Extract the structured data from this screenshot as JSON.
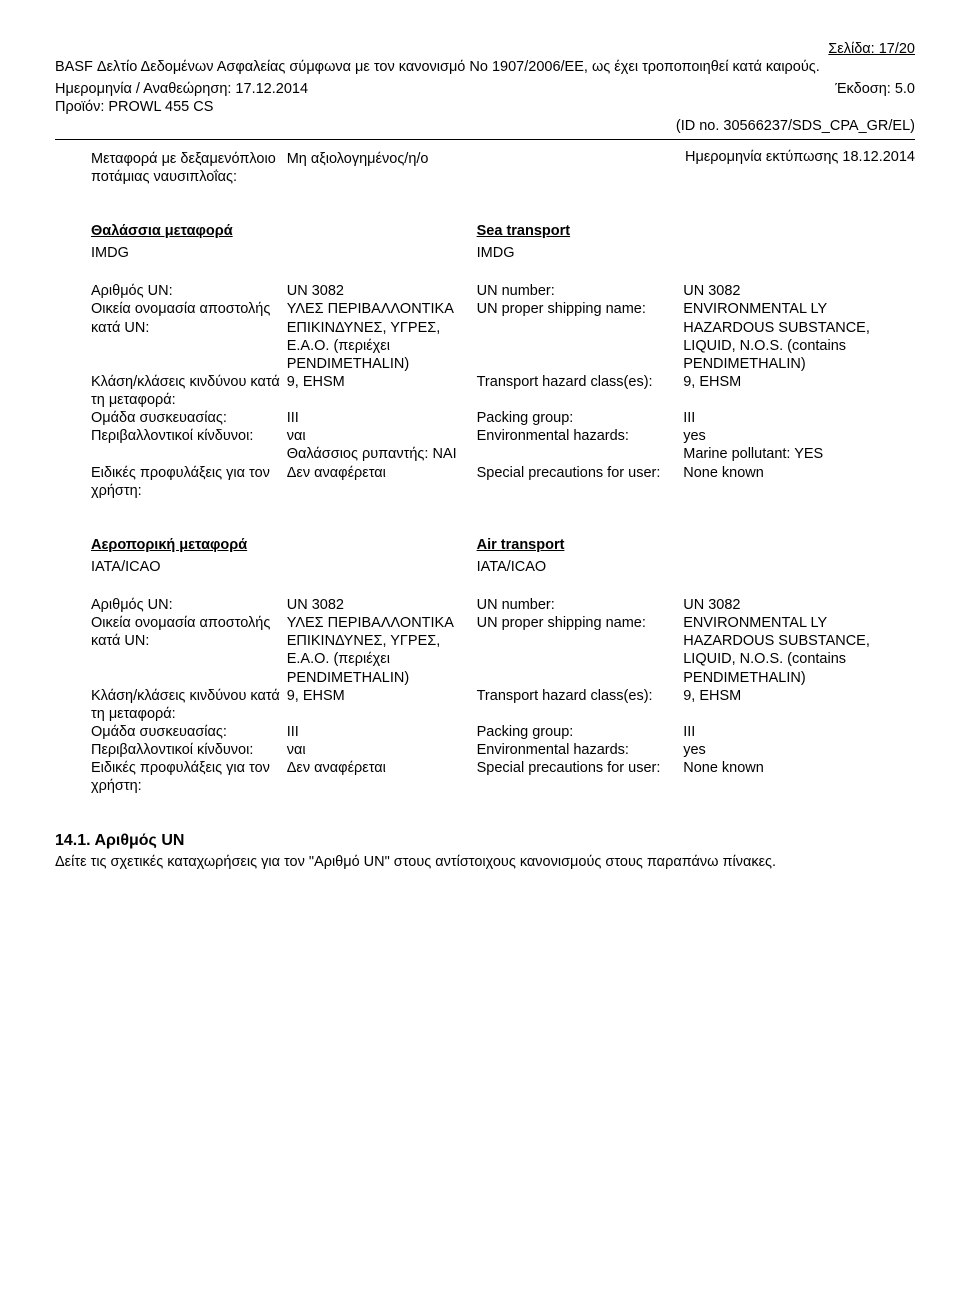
{
  "header": {
    "page_label": "Σελίδα: 17/20",
    "title_line": "BASF Δελτίο Δεδομένων Ασφαλείας σύμφωνα με τον κανονισμό Νο 1907/2006/ΕΕ, ως έχει τροποποιηθεί κατά καιρούς.",
    "date_label": "Ημερομηνία / Αναθεώρηση: 17.12.2014",
    "version_label": "Έκδοση: 5.0",
    "product_label": "Προϊόν: PROWL 455 CS",
    "id_line": "(ID no. 30566237/SDS_CPA_GR/EL)",
    "print_date": "Ημερομηνία εκτύπωσης 18.12.2014",
    "transport_tanker_label": "Μεταφορά με δεξαμενόπλοιο ποτάμιας ναυσιπλοΐας:",
    "transport_tanker_value": "Μη αξιολογημένος/η/ο"
  },
  "sea": {
    "gr_title": "Θαλάσσια μεταφορά",
    "en_title": "Sea transport",
    "gr_code": "IMDG",
    "en_code": "IMDG",
    "rows": [
      {
        "gr_l": "Αριθμός UN:",
        "gr_v": "UN 3082",
        "en_l": "UN number:",
        "en_v": "UN 3082"
      },
      {
        "gr_l": "Οικεία ονομασία αποστολής κατά UN:",
        "gr_v": "ΥΛΕΣ ΠΕΡΙΒΑΛΛΟΝΤΙΚΑ ΕΠΙΚΙΝΔΥΝΕΣ, ΥΓΡΕΣ, Ε.Α.Ο. (περιέχει PENDIMETHALIN)",
        "en_l": "UN proper shipping name:",
        "en_v": "ENVIRONMENTAL LY HAZARDOUS SUBSTANCE, LIQUID, N.O.S. (contains PENDIMETHALIN)"
      },
      {
        "gr_l": "Κλάση/κλάσεις κινδύνου κατά τη μεταφορά:",
        "gr_v": "9, EHSM",
        "en_l": "Transport hazard class(es):",
        "en_v": "9, EHSM"
      },
      {
        "gr_l": "Ομάδα συσκευασίας:",
        "gr_v": "III",
        "en_l": "Packing group:",
        "en_v": "III"
      },
      {
        "gr_l": "Περιβαλλοντικοί κίνδυνοι:",
        "gr_v": "ναι\nΘαλάσσιος ρυπαντής: ΝΑΙ",
        "en_l": "Environmental hazards:",
        "en_v": "yes\nMarine pollutant: YES"
      },
      {
        "gr_l": "Ειδικές προφυλάξεις για τον χρήστη:",
        "gr_v": "Δεν αναφέρεται",
        "en_l": "Special precautions for user:",
        "en_v": "None known"
      }
    ]
  },
  "air": {
    "gr_title": "Αεροπορική μεταφορά",
    "en_title": "Air transport",
    "gr_code": "IATA/ICAO",
    "en_code": "IATA/ICAO",
    "rows": [
      {
        "gr_l": "Αριθμός UN:",
        "gr_v": "UN 3082",
        "en_l": "UN number:",
        "en_v": "UN 3082"
      },
      {
        "gr_l": "Οικεία ονομασία αποστολής κατά UN:",
        "gr_v": "ΥΛΕΣ ΠΕΡΙΒΑΛΛΟΝΤΙΚΑ ΕΠΙΚΙΝΔΥΝΕΣ, ΥΓΡΕΣ, Ε.Α.Ο. (περιέχει PENDIMETHALIN)",
        "en_l": "UN proper shipping name:",
        "en_v": "ENVIRONMENTAL LY HAZARDOUS SUBSTANCE, LIQUID, N.O.S. (contains PENDIMETHALIN)"
      },
      {
        "gr_l": "Κλάση/κλάσεις κινδύνου κατά τη μεταφορά:",
        "gr_v": "9, EHSM",
        "en_l": "Transport hazard class(es):",
        "en_v": "9, EHSM"
      },
      {
        "gr_l": "Ομάδα συσκευασίας:",
        "gr_v": "III",
        "en_l": "Packing group:",
        "en_v": "III"
      },
      {
        "gr_l": "Περιβαλλοντικοί κίνδυνοι:",
        "gr_v": "ναι",
        "en_l": "Environmental hazards:",
        "en_v": "yes"
      },
      {
        "gr_l": "Ειδικές προφυλάξεις για τον χρήστη:",
        "gr_v": "Δεν αναφέρεται",
        "en_l": "Special precautions for user:",
        "en_v": "None known"
      }
    ]
  },
  "section141": {
    "heading": "14.1. Αριθμός UN",
    "text": "Δείτε τις σχετικές καταχωρήσεις για τον \"Αριθμό UN\" στους αντίστοιχους κανονισμούς στους παραπάνω πίνακες."
  }
}
